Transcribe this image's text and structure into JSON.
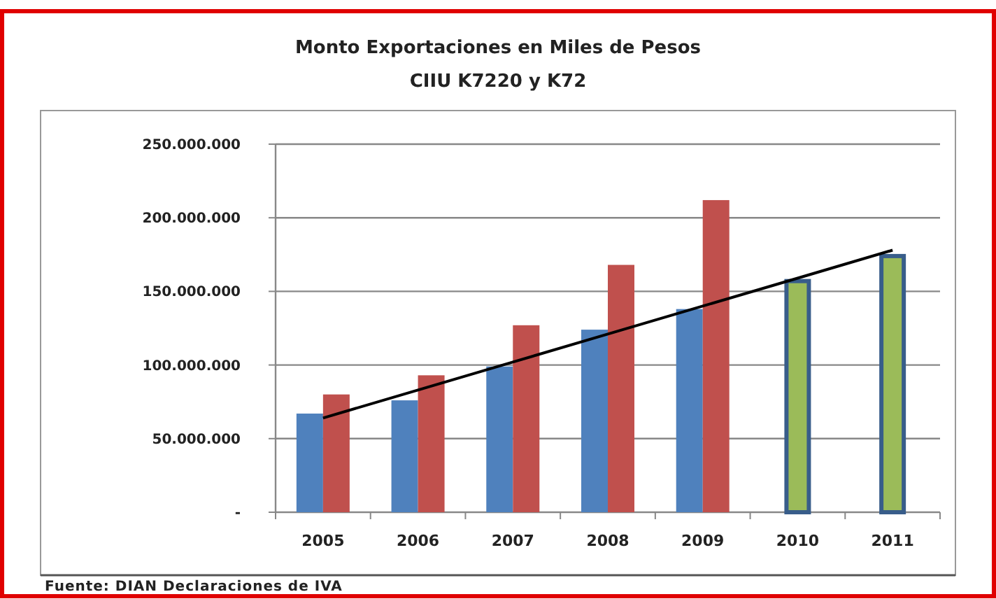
{
  "chart_data": {
    "type": "bar",
    "title": "Monto Exportaciones en Miles de Pesos",
    "subtitle": "CIIU K7220  y K72",
    "categories": [
      "2005",
      "2006",
      "2007",
      "2008",
      "2009",
      "2010",
      "2011"
    ],
    "series": [
      {
        "color": "#4f81bd",
        "values": [
          67000000,
          76000000,
          99000000,
          124000000,
          138000000,
          null,
          null
        ]
      },
      {
        "color": "#c0504d",
        "values": [
          80000000,
          93000000,
          127000000,
          168000000,
          212000000,
          null,
          null
        ]
      },
      {
        "color": "#9bbb59",
        "values": [
          null,
          null,
          null,
          null,
          null,
          157000000,
          174000000
        ]
      },
      {
        "type": "line",
        "color": "#000000",
        "values": [
          64000000,
          83000000,
          102000000,
          121000000,
          140000000,
          159000000,
          178000000
        ]
      }
    ],
    "ylim": [
      0,
      250000000
    ],
    "yticks": [
      {
        "value": 0,
        "label": "-"
      },
      {
        "value": 50000000,
        "label": "50.000.000"
      },
      {
        "value": 100000000,
        "label": "100.000.000"
      },
      {
        "value": 150000000,
        "label": "150.000.000"
      },
      {
        "value": 200000000,
        "label": "200.000.000"
      },
      {
        "value": 250000000,
        "label": "250.000.000"
      }
    ],
    "grid": "y",
    "annotations": [
      "Fuente: DIAN Declaraciones de IVA"
    ]
  }
}
